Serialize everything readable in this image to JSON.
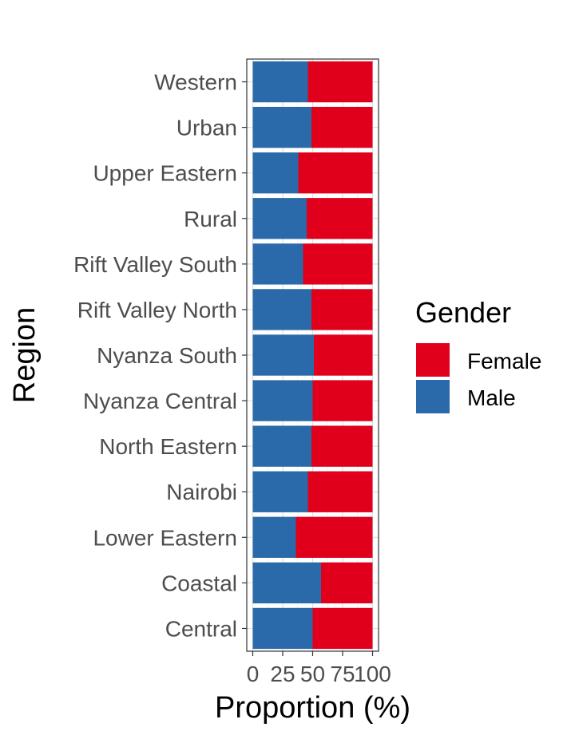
{
  "chart_data": {
    "type": "bar",
    "orientation": "horizontal",
    "stacked": true,
    "categories": [
      "Central",
      "Coastal",
      "Lower Eastern",
      "Nairobi",
      "North Eastern",
      "Nyanza Central",
      "Nyanza South",
      "Rift Valley North",
      "Rift Valley South",
      "Rural",
      "Upper Eastern",
      "Urban",
      "Western"
    ],
    "series": [
      {
        "name": "Male",
        "color": "#2B6AAA",
        "values": [
          50,
          57,
          36,
          46,
          49,
          50,
          51,
          49,
          42,
          45,
          38,
          49,
          46
        ]
      },
      {
        "name": "Female",
        "color": "#E0001B",
        "values": [
          50,
          43,
          64,
          54,
          51,
          50,
          49,
          51,
          58,
          55,
          62,
          51,
          54
        ]
      }
    ],
    "xlabel": "Proportion (%)",
    "ylabel": "Region",
    "xlim": [
      0,
      100
    ],
    "xticks": [
      "0",
      "25",
      "50",
      "75",
      "100"
    ],
    "grid": true,
    "legend": {
      "title": "Gender",
      "position": "right",
      "entries": [
        "Female",
        "Male"
      ]
    }
  }
}
